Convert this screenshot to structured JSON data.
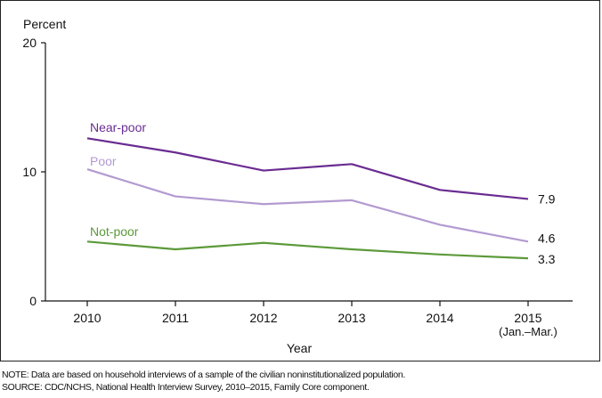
{
  "chart_data": {
    "type": "line",
    "ylabel": "Percent",
    "xlabel": "Year",
    "ylim": [
      0,
      20
    ],
    "yticks": [
      "0",
      "10",
      "20"
    ],
    "x": [
      "2010",
      "2011",
      "2012",
      "2013",
      "2014",
      "2015"
    ],
    "x_sublabel": {
      "2015": "(Jan.–Mar.)"
    },
    "grid": false,
    "series": [
      {
        "name": "Near-poor",
        "color": "#6a2c91",
        "values": [
          12.6,
          11.5,
          10.1,
          10.6,
          8.6,
          7.9
        ],
        "end_label": "7.9"
      },
      {
        "name": "Poor",
        "color": "#b39ad1",
        "values": [
          10.2,
          8.1,
          7.5,
          7.8,
          5.9,
          4.6
        ],
        "end_label": "4.6"
      },
      {
        "name": "Not-poor",
        "color": "#5c9a3a",
        "values": [
          4.6,
          4.0,
          4.5,
          4.0,
          3.6,
          3.3
        ],
        "end_label": "3.3"
      }
    ]
  },
  "notes": {
    "note": "NOTE: Data are based on household interviews of a sample of the civilian noninstitutionalized population.",
    "source": "SOURCE: CDC/NCHS, National Health Interview Survey, 2010–2015, Family Core component."
  }
}
